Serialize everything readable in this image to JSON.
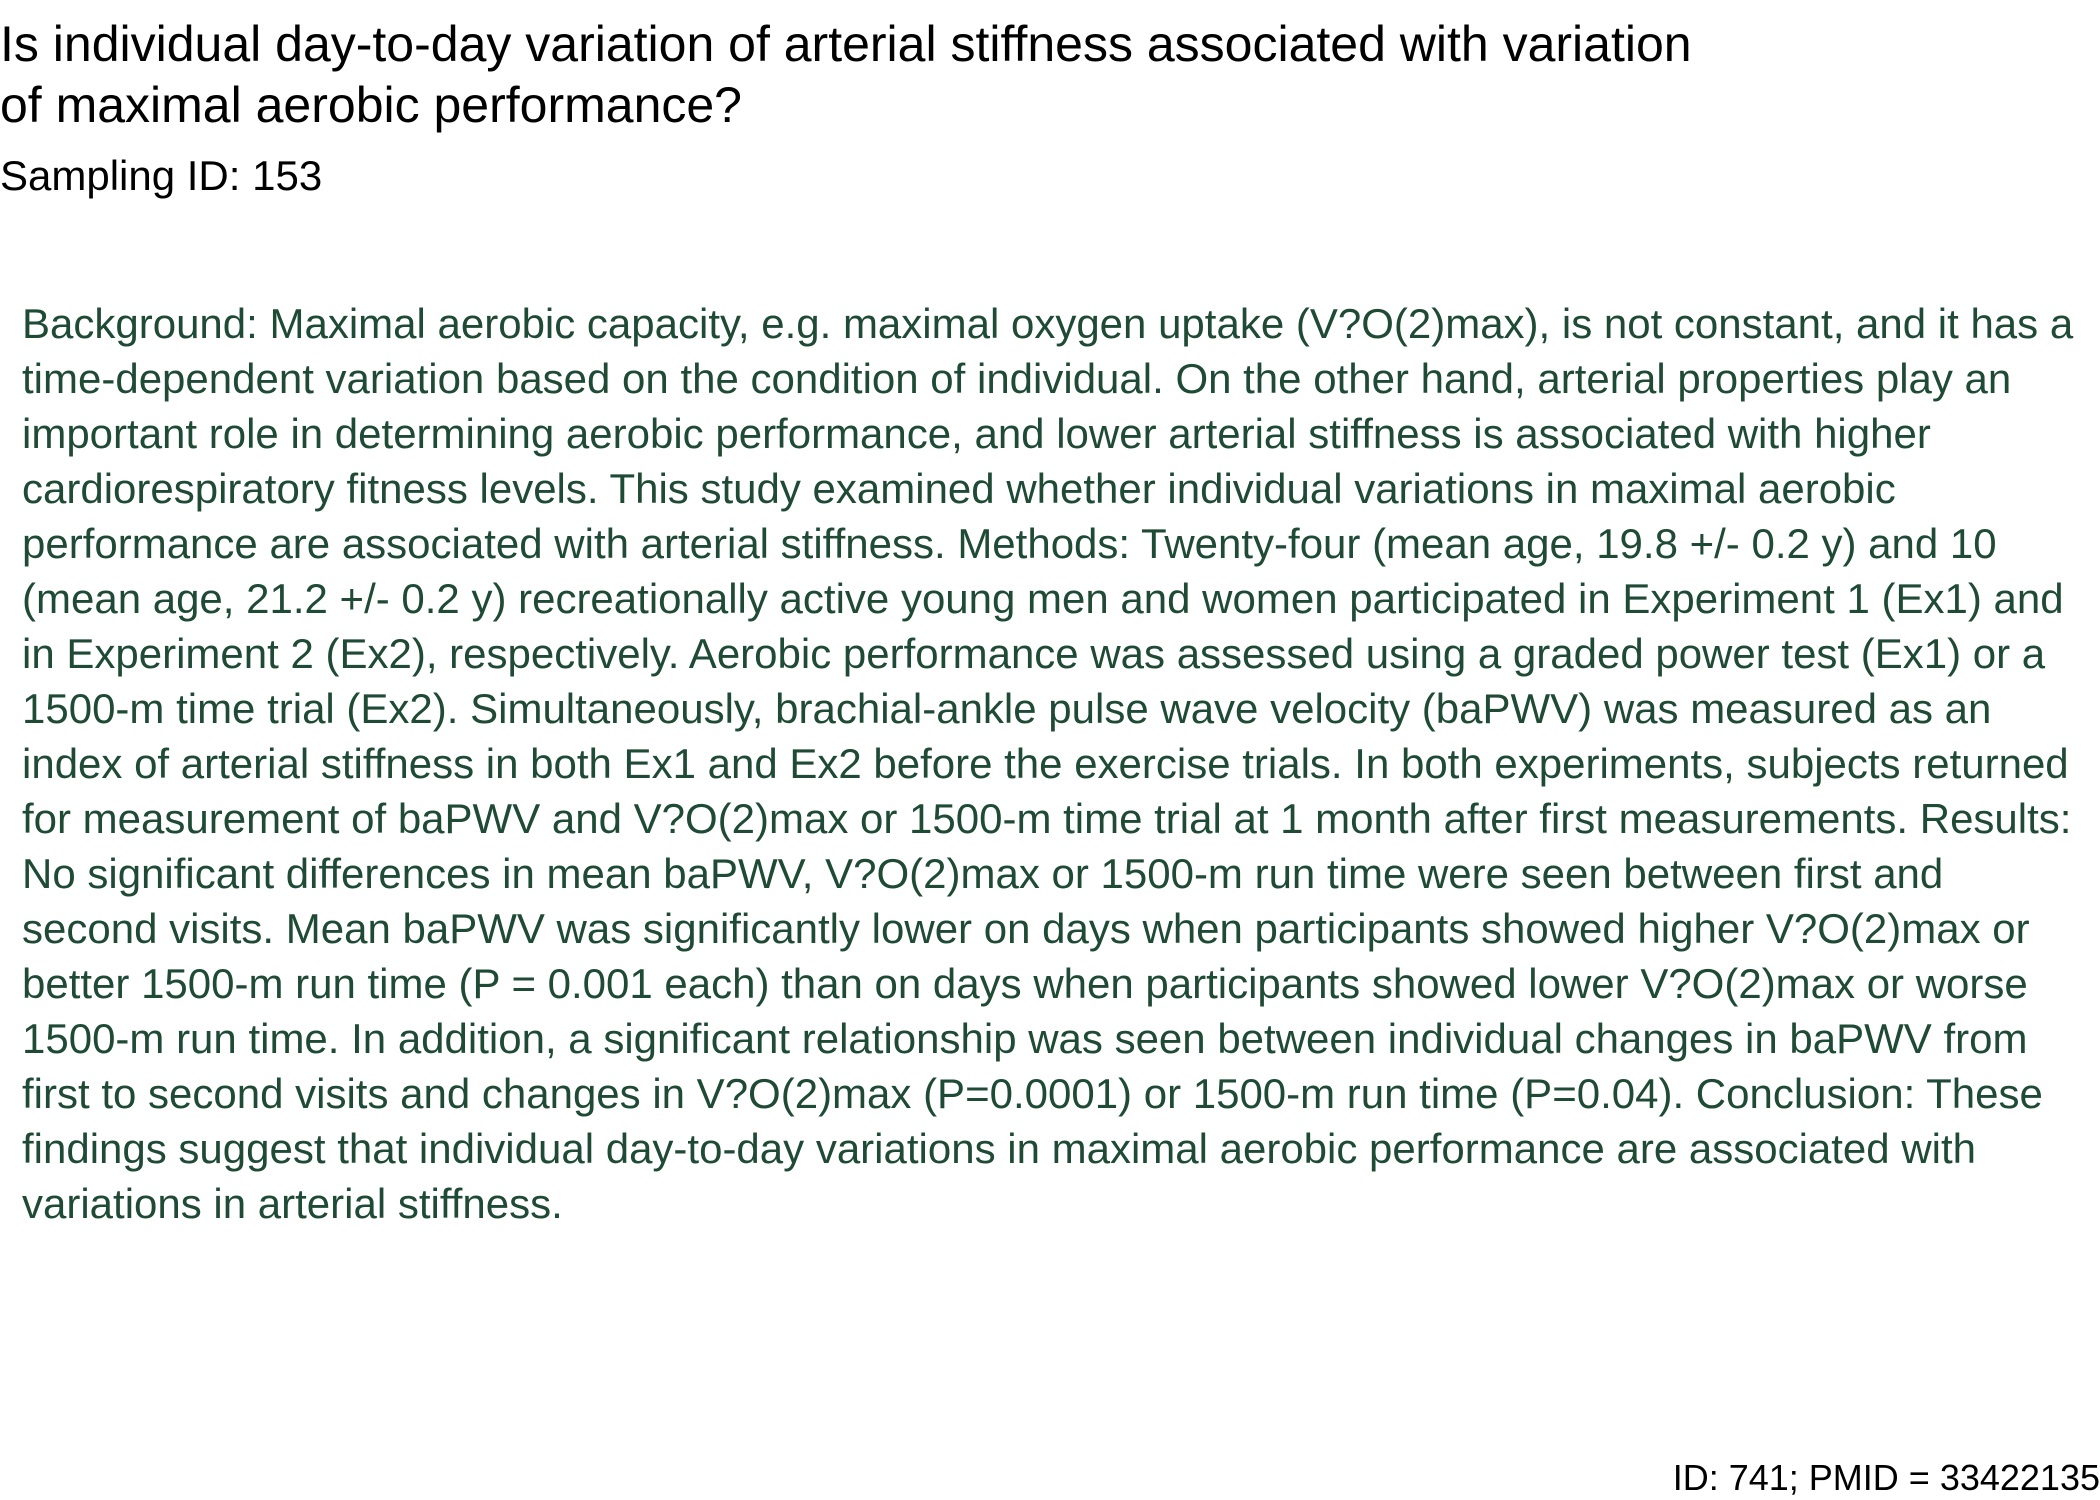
{
  "document": {
    "title": "Is individual day-to-day variation of arterial stiffness associated with variation of maximal aerobic performance?",
    "sampling_id": "Sampling ID: 153",
    "abstract": "Background: Maximal aerobic capacity, e.g. maximal oxygen uptake (V?O(2)max), is not constant, and it has a time-dependent variation based on the condition of individual. On the other hand, arterial properties play an important role in determining aerobic performance, and lower arterial stiffness is associated with higher cardiorespiratory fitness levels. This study examined whether individual variations in maximal aerobic performance are associated with arterial stiffness. Methods: Twenty-four (mean age, 19.8 +/- 0.2 y) and 10 (mean age, 21.2 +/- 0.2 y) recreationally active young men and women participated in Experiment 1 (Ex1) and in Experiment 2 (Ex2), respectively. Aerobic performance was assessed using a graded power test (Ex1) or a 1500-m time trial (Ex2). Simultaneously, brachial-ankle pulse wave velocity (baPWV) was measured as an index of arterial stiffness in both Ex1 and Ex2 before the exercise trials. In both experiments, subjects returned for measurement of baPWV and V?O(2)max or 1500-m time trial at 1 month after first measurements. Results: No significant differences in mean baPWV, V?O(2)max or 1500-m run time were seen between first and second visits. Mean baPWV was significantly lower on days when participants showed higher V?O(2)max or better 1500-m run time (P = 0.001 each) than on days when participants showed lower V?O(2)max or worse 1500-m run time. In addition, a significant relationship was seen between individual changes in baPWV from first to second visits and changes in V?O(2)max (P=0.0001) or 1500-m run time (P=0.04). Conclusion: These findings suggest that individual day-to-day variations in maximal aerobic performance are associated with variations in arterial stiffness.",
    "footer": "ID: 741; PMID = 33422135"
  },
  "colors": {
    "title": "#000000",
    "abstract_text": "#1f4a35",
    "background": "#ffffff"
  }
}
